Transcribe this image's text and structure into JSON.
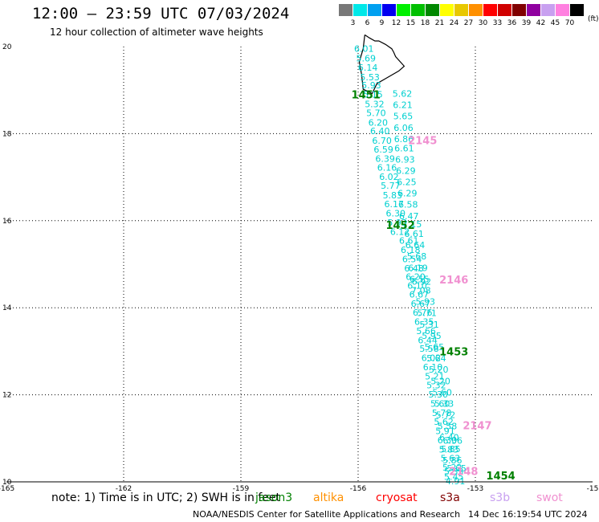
{
  "title": "12:00 – 23:59 UTC 07/03/2024",
  "subtitle": "12 hour collection of altimeter wave heights",
  "legend": {
    "unit": "(ft)",
    "bins": [
      {
        "label": "3",
        "color": "#787878"
      },
      {
        "label": "6",
        "color": "#00e8e8"
      },
      {
        "label": "9",
        "color": "#00a0f0"
      },
      {
        "label": "12",
        "color": "#0000f0"
      },
      {
        "label": "15",
        "color": "#00f000"
      },
      {
        "label": "18",
        "color": "#00c000"
      },
      {
        "label": "21",
        "color": "#008800"
      },
      {
        "label": "24",
        "color": "#ffff00"
      },
      {
        "label": "27",
        "color": "#e8c800"
      },
      {
        "label": "30",
        "color": "#ff9000"
      },
      {
        "label": "33",
        "color": "#ff0000"
      },
      {
        "label": "36",
        "color": "#d00000"
      },
      {
        "label": "39",
        "color": "#800000"
      },
      {
        "label": "42",
        "color": "#9000a0"
      },
      {
        "label": "45",
        "color": "#c8a0f0"
      },
      {
        "label": "70",
        "color": "#ff80e0"
      },
      {
        "label": "",
        "color": "#000000"
      }
    ]
  },
  "axes": {
    "lon_range": [
      -165,
      -150
    ],
    "lat_range": [
      10,
      20
    ],
    "lon_ticks": [
      "-165",
      "-162",
      "-159",
      "-156",
      "-153",
      "-15"
    ],
    "lat_ticks": [
      "20",
      "18",
      "16",
      "14",
      "12",
      "10"
    ]
  },
  "colors": {
    "cyan_track": "#00d0d0",
    "jason": "#008000",
    "swot_time": "#f090d0"
  },
  "tracks": [
    {
      "name": "track-west",
      "color": "#00d0d0",
      "points": [
        {
          "lat": 19.95,
          "lon": -155.85,
          "v": "6.01"
        },
        {
          "lat": 19.73,
          "lon": -155.8,
          "v": "5.69"
        },
        {
          "lat": 19.52,
          "lon": -155.75,
          "v": "6.14"
        },
        {
          "lat": 19.3,
          "lon": -155.7,
          "v": "5.53"
        },
        {
          "lat": 19.11,
          "lon": -155.66,
          "v": "5.93"
        },
        {
          "lat": 18.9,
          "lon": -155.62,
          "v": "5.15"
        },
        {
          "lat": 18.68,
          "lon": -155.58,
          "v": "5.32"
        },
        {
          "lat": 18.48,
          "lon": -155.54,
          "v": "5.70"
        },
        {
          "lat": 18.26,
          "lon": -155.49,
          "v": "6.20"
        },
        {
          "lat": 18.06,
          "lon": -155.44,
          "v": "6.40"
        },
        {
          "lat": 17.84,
          "lon": -155.39,
          "v": "6.70"
        },
        {
          "lat": 17.64,
          "lon": -155.35,
          "v": "6.59"
        },
        {
          "lat": 17.43,
          "lon": -155.31,
          "v": "6.39"
        },
        {
          "lat": 17.22,
          "lon": -155.26,
          "v": "6.16"
        },
        {
          "lat": 17.01,
          "lon": -155.21,
          "v": "6.02"
        },
        {
          "lat": 16.81,
          "lon": -155.17,
          "v": "5.77"
        },
        {
          "lat": 16.59,
          "lon": -155.12,
          "v": "5.83"
        },
        {
          "lat": 16.38,
          "lon": -155.08,
          "v": "6.17"
        },
        {
          "lat": 16.17,
          "lon": -155.04,
          "v": "6.30"
        },
        {
          "lat": 15.96,
          "lon": -155.0,
          "v": "5.93"
        },
        {
          "lat": 15.75,
          "lon": -154.93,
          "v": "6.12"
        },
        {
          "lat": 15.54,
          "lon": -154.7,
          "v": "6.61"
        },
        {
          "lat": 15.33,
          "lon": -154.66,
          "v": "6.18"
        },
        {
          "lat": 15.12,
          "lon": -154.62,
          "v": "6.54"
        },
        {
          "lat": 14.91,
          "lon": -154.57,
          "v": "6.48"
        },
        {
          "lat": 14.71,
          "lon": -154.53,
          "v": "6.20"
        },
        {
          "lat": 14.51,
          "lon": -154.49,
          "v": "6.10"
        },
        {
          "lat": 14.31,
          "lon": -154.44,
          "v": "6.67"
        },
        {
          "lat": 14.1,
          "lon": -154.4,
          "v": "6.67"
        },
        {
          "lat": 13.89,
          "lon": -154.35,
          "v": "6.76"
        },
        {
          "lat": 13.68,
          "lon": -154.31,
          "v": "6.35"
        },
        {
          "lat": 13.47,
          "lon": -154.26,
          "v": "5.66"
        },
        {
          "lat": 13.26,
          "lon": -154.22,
          "v": "6.44"
        },
        {
          "lat": 13.06,
          "lon": -154.18,
          "v": "5.58"
        },
        {
          "lat": 12.85,
          "lon": -154.13,
          "v": "6.02"
        },
        {
          "lat": 12.64,
          "lon": -154.09,
          "v": "6.10"
        },
        {
          "lat": 12.43,
          "lon": -154.04,
          "v": "5.21"
        },
        {
          "lat": 12.22,
          "lon": -154.0,
          "v": "5.32"
        },
        {
          "lat": 12.01,
          "lon": -153.95,
          "v": "5.30"
        },
        {
          "lat": 11.8,
          "lon": -153.9,
          "v": "5.60"
        },
        {
          "lat": 11.59,
          "lon": -153.86,
          "v": "5.78"
        },
        {
          "lat": 11.38,
          "lon": -153.81,
          "v": "5.62"
        },
        {
          "lat": 11.17,
          "lon": -153.77,
          "v": "5.91"
        },
        {
          "lat": 10.96,
          "lon": -153.72,
          "v": "6.30"
        },
        {
          "lat": 10.75,
          "lon": -153.68,
          "v": "5.83"
        },
        {
          "lat": 10.54,
          "lon": -153.64,
          "v": "5.63"
        },
        {
          "lat": 10.33,
          "lon": -153.59,
          "v": "5.22"
        },
        {
          "lat": 10.12,
          "lon": -153.55,
          "v": "5.45"
        }
      ]
    },
    {
      "name": "track-east",
      "color": "#00d0d0",
      "points": [
        {
          "lat": 18.92,
          "lon": -154.87,
          "v": "5.62"
        },
        {
          "lat": 18.66,
          "lon": -154.86,
          "v": "6.21"
        },
        {
          "lat": 18.4,
          "lon": -154.85,
          "v": "5.65"
        },
        {
          "lat": 18.14,
          "lon": -154.84,
          "v": "6.06"
        },
        {
          "lat": 17.88,
          "lon": -154.83,
          "v": "6.86"
        },
        {
          "lat": 17.67,
          "lon": -154.82,
          "v": "6.61"
        },
        {
          "lat": 17.41,
          "lon": -154.8,
          "v": "6.93"
        },
        {
          "lat": 17.15,
          "lon": -154.78,
          "v": "6.29"
        },
        {
          "lat": 16.89,
          "lon": -154.76,
          "v": "6.25"
        },
        {
          "lat": 16.63,
          "lon": -154.74,
          "v": "6.29"
        },
        {
          "lat": 16.37,
          "lon": -154.72,
          "v": "6.58"
        },
        {
          "lat": 16.11,
          "lon": -154.7,
          "v": "6.47"
        },
        {
          "lat": 15.92,
          "lon": -154.62,
          "v": "7.15"
        },
        {
          "lat": 15.7,
          "lon": -154.57,
          "v": "6.61"
        },
        {
          "lat": 15.44,
          "lon": -154.54,
          "v": "6.64"
        },
        {
          "lat": 15.18,
          "lon": -154.5,
          "v": "5.68"
        },
        {
          "lat": 14.92,
          "lon": -154.47,
          "v": "6.19"
        },
        {
          "lat": 14.66,
          "lon": -154.43,
          "v": "6.55"
        },
        {
          "lat": 14.4,
          "lon": -154.39,
          "v": "7.08"
        },
        {
          "lat": 14.14,
          "lon": -154.28,
          "v": "5.93"
        },
        {
          "lat": 13.88,
          "lon": -154.24,
          "v": "5.71"
        },
        {
          "lat": 13.62,
          "lon": -154.18,
          "v": "5.31"
        },
        {
          "lat": 13.36,
          "lon": -154.12,
          "v": "5.95"
        },
        {
          "lat": 13.1,
          "lon": -154.05,
          "v": "5.65"
        },
        {
          "lat": 12.84,
          "lon": -154.0,
          "v": "5.64"
        },
        {
          "lat": 12.58,
          "lon": -153.94,
          "v": "5.20"
        },
        {
          "lat": 12.32,
          "lon": -153.89,
          "v": "5.20"
        },
        {
          "lat": 12.06,
          "lon": -153.85,
          "v": "5.60"
        },
        {
          "lat": 11.8,
          "lon": -153.8,
          "v": "5.33"
        },
        {
          "lat": 11.54,
          "lon": -153.76,
          "v": "5.72"
        },
        {
          "lat": 11.28,
          "lon": -153.72,
          "v": "5.58"
        },
        {
          "lat": 11.02,
          "lon": -153.67,
          "v": "6.40"
        },
        {
          "lat": 10.76,
          "lon": -153.63,
          "v": "5.85"
        },
        {
          "lat": 10.5,
          "lon": -153.59,
          "v": "5.86"
        },
        {
          "lat": 10.24,
          "lon": -153.55,
          "v": "5.33"
        },
        {
          "lat": 10.02,
          "lon": -153.51,
          "v": "4.91"
        }
      ]
    }
  ],
  "overlay_values": [
    {
      "lat": 14.6,
      "lon": -154.38,
      "v": "6.92",
      "color": "#00d0d0"
    },
    {
      "lat": 10.31,
      "lon": -153.48,
      "v": "5.65",
      "color": "#00d0d0"
    },
    {
      "lat": 10.95,
      "lon": -153.58,
      "v": "6.36",
      "color": "#00d0d0"
    }
  ],
  "time_labels": [
    {
      "lat": 18.9,
      "lon": -155.8,
      "text": "1451",
      "color": "#008000"
    },
    {
      "lat": 17.85,
      "lon": -154.35,
      "text": "2145",
      "color": "#f090d0"
    },
    {
      "lat": 15.9,
      "lon": -154.92,
      "text": "1452",
      "color": "#008000"
    },
    {
      "lat": 14.65,
      "lon": -153.55,
      "text": "2146",
      "color": "#f090d0"
    },
    {
      "lat": 13.0,
      "lon": -153.55,
      "text": "1453",
      "color": "#008000"
    },
    {
      "lat": 11.3,
      "lon": -152.95,
      "text": "2147",
      "color": "#f090d0"
    },
    {
      "lat": 10.25,
      "lon": -153.3,
      "text": "2148",
      "color": "#f090d0"
    },
    {
      "lat": 10.15,
      "lon": -152.35,
      "text": "1454",
      "color": "#008000"
    }
  ],
  "island_lonlat": [
    [
      -155.83,
      20.27
    ],
    [
      -155.71,
      20.2
    ],
    [
      -155.57,
      20.13
    ],
    [
      -155.47,
      20.13
    ],
    [
      -155.3,
      20.05
    ],
    [
      -155.14,
      19.95
    ],
    [
      -155.09,
      19.87
    ],
    [
      -155.04,
      19.77
    ],
    [
      -154.82,
      19.55
    ],
    [
      -154.96,
      19.44
    ],
    [
      -155.29,
      19.27
    ],
    [
      -155.52,
      19.15
    ],
    [
      -155.64,
      18.92
    ],
    [
      -155.87,
      19.02
    ],
    [
      -155.91,
      19.35
    ],
    [
      -155.97,
      19.65
    ],
    [
      -155.87,
      19.95
    ],
    [
      -155.83,
      20.27
    ]
  ],
  "note": "note: 1) Time is in UTC; 2) SWH is in feet",
  "satellites": [
    {
      "name": "jason3",
      "color": "#008000"
    },
    {
      "name": "altika",
      "color": "#ff9000"
    },
    {
      "name": "cryosat",
      "color": "#ff0000"
    },
    {
      "name": "s3a",
      "color": "#800000"
    },
    {
      "name": "s3b",
      "color": "#c8a0f0"
    },
    {
      "name": "swot",
      "color": "#f090d0"
    }
  ],
  "footer": {
    "credit": "NOAA/NESDIS Center for Satellite Applications and Research",
    "date": "14 Dec 16:19:54 UTC 2024"
  }
}
